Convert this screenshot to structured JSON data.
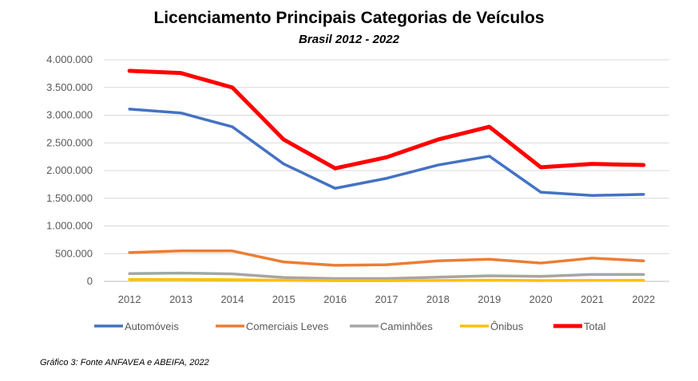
{
  "chart_data": {
    "type": "line",
    "title": "Licenciamento Principais Categorias de Veículos",
    "subtitle": "Brasil 2012 - 2022",
    "xlabel": "",
    "ylabel": "",
    "categories": [
      "2012",
      "2013",
      "2014",
      "2015",
      "2016",
      "2017",
      "2018",
      "2019",
      "2020",
      "2021",
      "2022"
    ],
    "ylim": [
      0,
      4000000
    ],
    "yticks": [
      "0",
      "500.000",
      "1.000.000",
      "1.500.000",
      "2.000.000",
      "2.500.000",
      "3.000.000",
      "3.500.000",
      "4.000.000"
    ],
    "grid": true,
    "legend_position": "bottom",
    "series": [
      {
        "name": "Automóveis",
        "color": "#4472C4",
        "values": [
          3110000,
          3040000,
          2790000,
          2120000,
          1680000,
          1860000,
          2100000,
          2260000,
          1610000,
          1550000,
          1570000
        ]
      },
      {
        "name": "Comerciais Leves",
        "color": "#ED7D31",
        "values": [
          520000,
          550000,
          550000,
          350000,
          290000,
          300000,
          370000,
          400000,
          330000,
          420000,
          370000
        ]
      },
      {
        "name": "Caminhões",
        "color": "#A5A5A5",
        "values": [
          140000,
          150000,
          135000,
          70000,
          50000,
          50000,
          75000,
          100000,
          90000,
          125000,
          125000
        ]
      },
      {
        "name": "Ônibus",
        "color": "#FFC000",
        "values": [
          35000,
          35000,
          30000,
          20000,
          12000,
          13000,
          17000,
          22000,
          15000,
          18000,
          20000
        ]
      },
      {
        "name": "Total",
        "color": "#FF0000",
        "values": [
          3800000,
          3760000,
          3500000,
          2560000,
          2040000,
          2240000,
          2560000,
          2790000,
          2060000,
          2120000,
          2100000
        ]
      }
    ],
    "source_note": "Gráfico 3: Fonte ANFAVEA e ABEIFA, 2022"
  }
}
